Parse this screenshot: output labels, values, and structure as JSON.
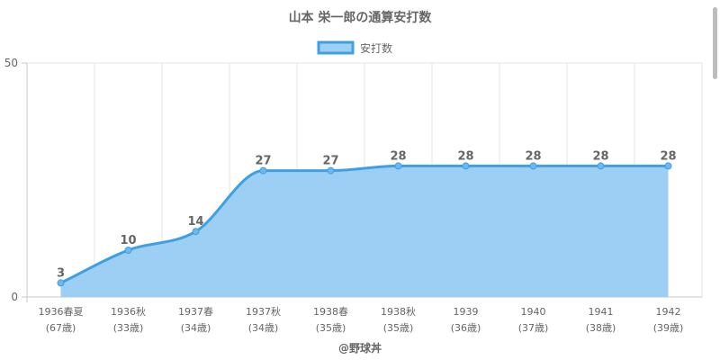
{
  "chart_data": {
    "type": "area",
    "title": "山本 栄一郎の通算安打数",
    "legend": {
      "label": "安打数",
      "position": "top"
    },
    "categories": [
      [
        "1936春夏",
        "(67歳)"
      ],
      [
        "1936秋",
        "(33歳)"
      ],
      [
        "1937春",
        "(34歳)"
      ],
      [
        "1937秋",
        "(34歳)"
      ],
      [
        "1938春",
        "(35歳)"
      ],
      [
        "1938秋",
        "(35歳)"
      ],
      [
        "1939",
        "(36歳)"
      ],
      [
        "1940",
        "(37歳)"
      ],
      [
        "1941",
        "(38歳)"
      ],
      [
        "1942",
        "(39歳)"
      ]
    ],
    "series": [
      {
        "name": "安打数",
        "values": [
          3,
          10,
          14,
          27,
          27,
          28,
          28,
          28,
          28,
          28
        ]
      }
    ],
    "ylim": [
      0,
      50
    ],
    "yticks": [
      0,
      50
    ],
    "xlabel": "@野球丼",
    "grid": true,
    "colors": {
      "line": "#3e9fe3",
      "fill": "#9dcff5",
      "point": "#6db8ee",
      "label": "#666666",
      "grid": "#e6e6e6"
    }
  }
}
